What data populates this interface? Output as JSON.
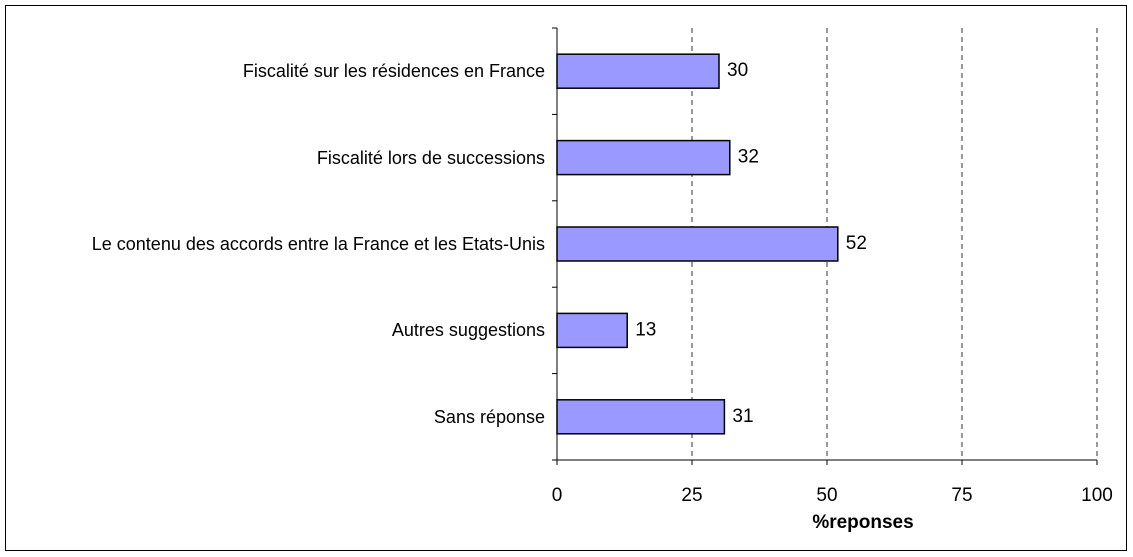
{
  "chart_data": {
    "type": "bar",
    "orientation": "horizontal",
    "categories": [
      "Fiscalité sur les résidences en France",
      "Fiscalité lors de successions",
      "Le contenu des accords entre la France et les Etats-Unis",
      "Autres suggestions",
      "Sans réponse"
    ],
    "values": [
      30,
      32,
      52,
      13,
      31
    ],
    "color": "#9999ff",
    "xlabel": "%reponses",
    "xlim": [
      0,
      100
    ],
    "xticks": [
      0,
      25,
      50,
      75,
      100
    ],
    "grid": true
  }
}
